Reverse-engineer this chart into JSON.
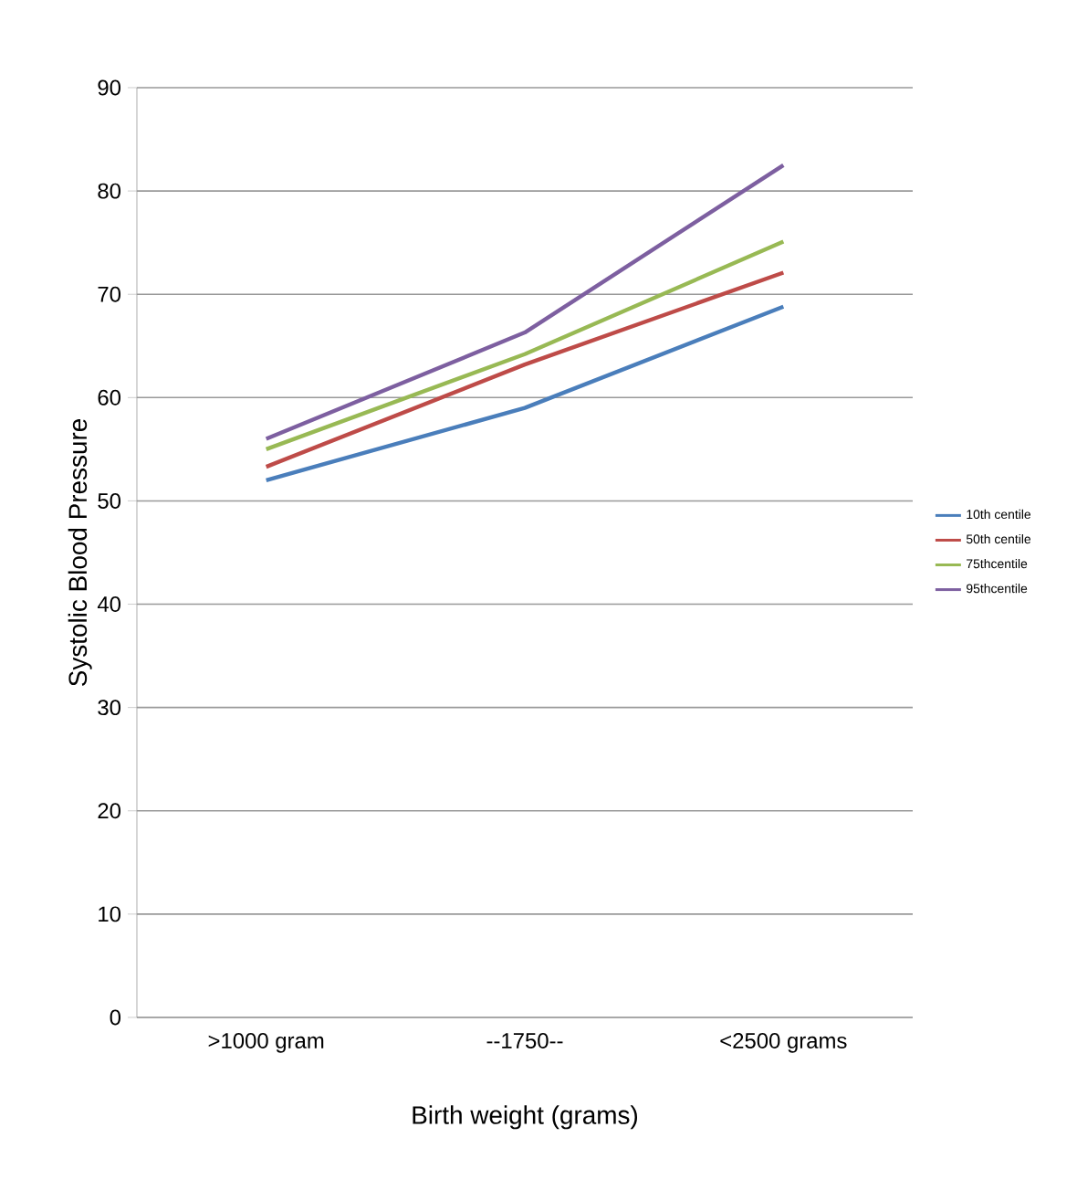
{
  "chart_data": {
    "type": "line",
    "xlabel": "Birth weight (grams)",
    "ylabel": "Systolic Blood Pressure",
    "categories": [
      ">1000 gram",
      "--1750--",
      "<2500 grams"
    ],
    "series": [
      {
        "name": "10th centile",
        "color": "#4a7ebb",
        "values": [
          52,
          59,
          68.8
        ]
      },
      {
        "name": "50th centile",
        "color": "#be4b48",
        "values": [
          53.3,
          63.2,
          72.1
        ]
      },
      {
        "name": "75thcentile",
        "color": "#98b954",
        "values": [
          55,
          64.2,
          75.1
        ]
      },
      {
        "name": "95thcentile",
        "color": "#7d5fa0",
        "values": [
          56,
          66.3,
          82.5
        ]
      }
    ],
    "ylim": [
      0,
      90
    ],
    "yticks": [
      0,
      10,
      20,
      30,
      40,
      50,
      60,
      70,
      80,
      90
    ],
    "grid": "y",
    "legend": "right",
    "marker": "none",
    "line_style": "solid"
  }
}
